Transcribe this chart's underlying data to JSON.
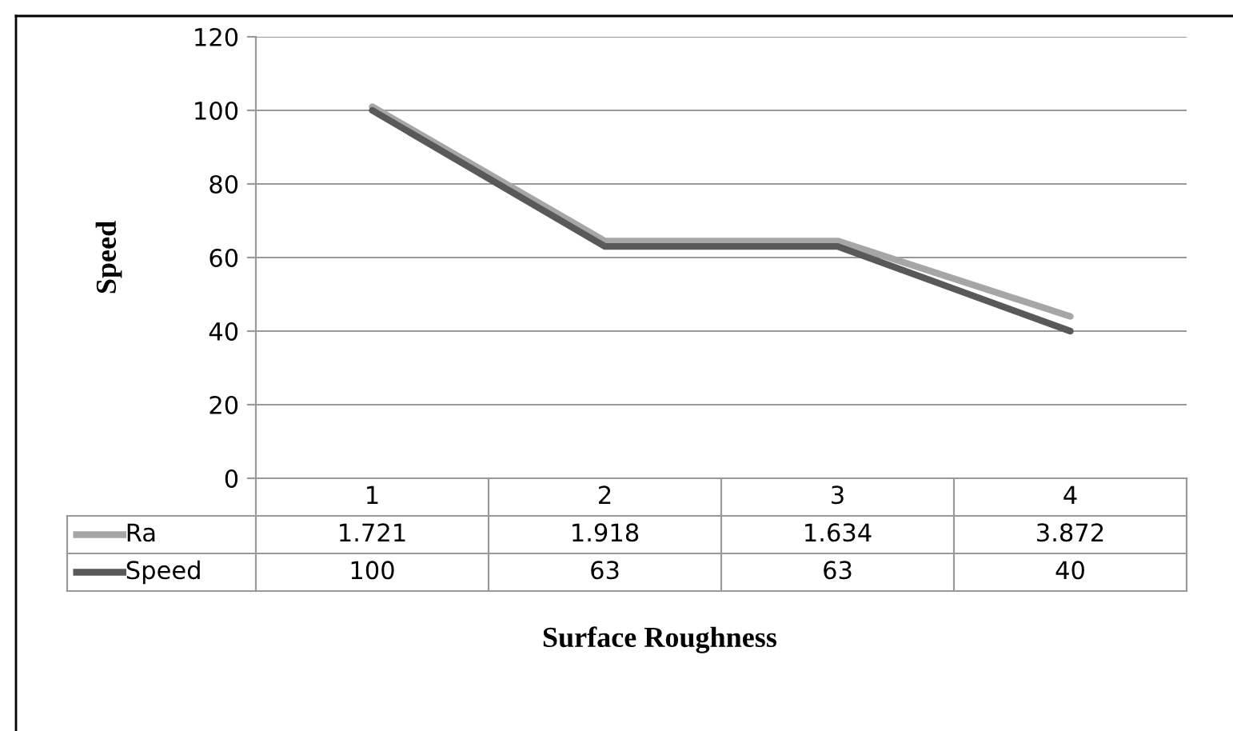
{
  "chart_data": {
    "type": "line",
    "xlabel": "Surface Roughness",
    "ylabel": "Speed",
    "categories": [
      "1",
      "2",
      "3",
      "4"
    ],
    "series": [
      {
        "name": "Ra",
        "color": "#a6a6a6",
        "values": [
          101,
          64.5,
          64.5,
          44
        ]
      },
      {
        "name": "Speed",
        "color": "#595959",
        "values": [
          100,
          63,
          63,
          40
        ],
        "value_labels": [
          "100",
          "63",
          "63",
          "40"
        ]
      }
    ],
    "annotations": [
      "1.721",
      "1.918",
      "1.634",
      "3.872"
    ],
    "ylim": [
      0,
      120
    ],
    "yticks": [
      0,
      20,
      40,
      60,
      80,
      100,
      120
    ],
    "grid": "y",
    "legend": "bottom left",
    "marker": "none",
    "line_style": "solid"
  }
}
